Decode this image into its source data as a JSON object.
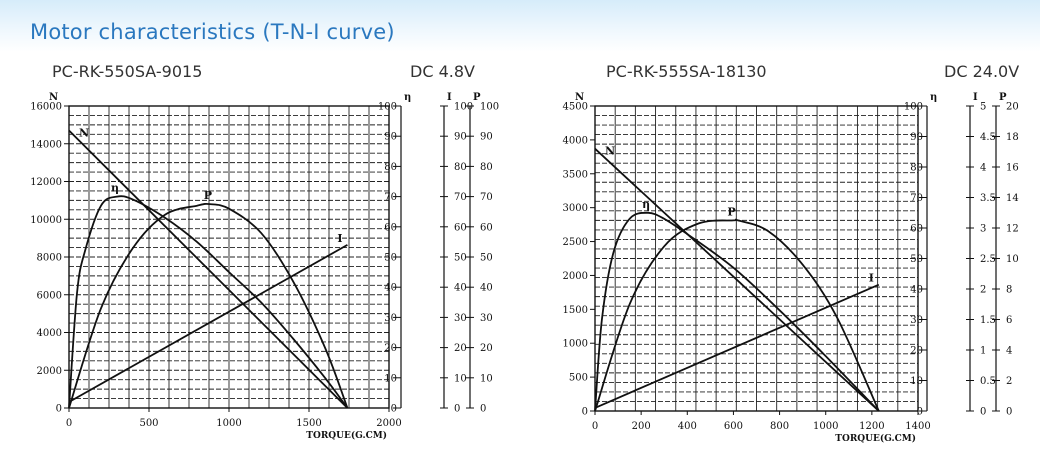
{
  "page": {
    "title": "Motor characteristics (T-N-I curve)"
  },
  "charts": [
    {
      "model": "PC-RK-550SA-9015",
      "voltage": "DC 4.8V"
    },
    {
      "model": "PC-RK-555SA-18130",
      "voltage": "DC 24.0V"
    }
  ],
  "chart_data": [
    {
      "type": "line",
      "title": "PC-RK-550SA-9015",
      "subtitle": "DC 4.8V",
      "xlabel": "TORQUE(G.CM)",
      "xlim": [
        0,
        2000
      ],
      "x_ticks": [
        0,
        500,
        1000,
        1500,
        2000
      ],
      "axes": [
        {
          "name": "N",
          "lim": [
            0,
            16000
          ],
          "ticks": [
            0,
            2000,
            4000,
            6000,
            8000,
            10000,
            12000,
            14000,
            16000
          ]
        },
        {
          "name": "η",
          "lim": [
            0,
            100
          ],
          "ticks": [
            0,
            10,
            20,
            30,
            40,
            50,
            60,
            70,
            80,
            90,
            100
          ]
        },
        {
          "name": "I",
          "lim": [
            0,
            100
          ],
          "ticks": [
            0,
            10,
            20,
            30,
            40,
            50,
            60,
            70,
            80,
            90,
            100
          ]
        },
        {
          "name": "P",
          "lim": [
            0,
            100
          ],
          "ticks": [
            0,
            10,
            20,
            30,
            40,
            50,
            60,
            70,
            80,
            90,
            100
          ]
        }
      ],
      "grid": true,
      "series": [
        {
          "name": "N",
          "axis": "N",
          "x": [
            0,
            1740
          ],
          "y": [
            14700,
            0
          ]
        },
        {
          "name": "η",
          "axis": "η",
          "x": [
            0,
            50,
            100,
            200,
            300,
            400,
            600,
            800,
            1000,
            1200,
            1400,
            1600,
            1740
          ],
          "y": [
            0,
            38,
            52,
            67,
            70,
            69,
            63,
            55,
            45,
            35,
            23,
            10,
            0
          ]
        },
        {
          "name": "P",
          "axis": "P",
          "x": [
            0,
            200,
            400,
            600,
            800,
            880,
            1000,
            1200,
            1400,
            1600,
            1740
          ],
          "y": [
            0,
            33,
            53,
            64,
            67,
            67.5,
            66,
            58,
            42,
            20,
            0
          ]
        },
        {
          "name": "I",
          "axis": "I",
          "x": [
            0,
            1740
          ],
          "y": [
            2,
            54
          ]
        }
      ]
    },
    {
      "type": "line",
      "title": "PC-RK-555SA-18130",
      "subtitle": "DC 24.0V",
      "xlabel": "TORQUE(G.CM)",
      "xlim": [
        0,
        1400
      ],
      "x_ticks": [
        0,
        200,
        400,
        600,
        800,
        1000,
        1200,
        1400
      ],
      "axes": [
        {
          "name": "N",
          "lim": [
            0,
            4500
          ],
          "ticks": [
            0,
            500,
            1000,
            1500,
            2000,
            2500,
            3000,
            3500,
            4000,
            4500
          ]
        },
        {
          "name": "η",
          "lim": [
            0,
            100
          ],
          "ticks": [
            0,
            10,
            20,
            30,
            40,
            50,
            60,
            70,
            80,
            90,
            100
          ]
        },
        {
          "name": "I",
          "lim": [
            0,
            5
          ],
          "ticks": [
            0,
            0.5,
            1,
            1.5,
            2,
            2.5,
            3,
            3.5,
            4,
            4.5,
            5
          ]
        },
        {
          "name": "P",
          "lim": [
            0,
            20
          ],
          "ticks": [
            0,
            2,
            4,
            6,
            8,
            10,
            12,
            14,
            16,
            18,
            20
          ]
        }
      ],
      "grid": true,
      "series": [
        {
          "name": "N",
          "axis": "N",
          "x": [
            0,
            1230
          ],
          "y": [
            3870,
            0
          ]
        },
        {
          "name": "η",
          "axis": "η",
          "x": [
            0,
            30,
            80,
            150,
            230,
            300,
            400,
            600,
            800,
            1000,
            1230
          ],
          "y": [
            0,
            30,
            52,
            63,
            65,
            63,
            58,
            47,
            33,
            18,
            0
          ]
        },
        {
          "name": "P",
          "axis": "P",
          "x": [
            0,
            150,
            300,
            450,
            600,
            620,
            750,
            900,
            1050,
            1230
          ],
          "y": [
            0,
            7,
            10.8,
            12.3,
            12.5,
            12.5,
            11.8,
            9.6,
            6.1,
            0
          ]
        },
        {
          "name": "I",
          "axis": "I",
          "x": [
            0,
            1230
          ],
          "y": [
            0.05,
            2.07
          ]
        }
      ]
    }
  ]
}
